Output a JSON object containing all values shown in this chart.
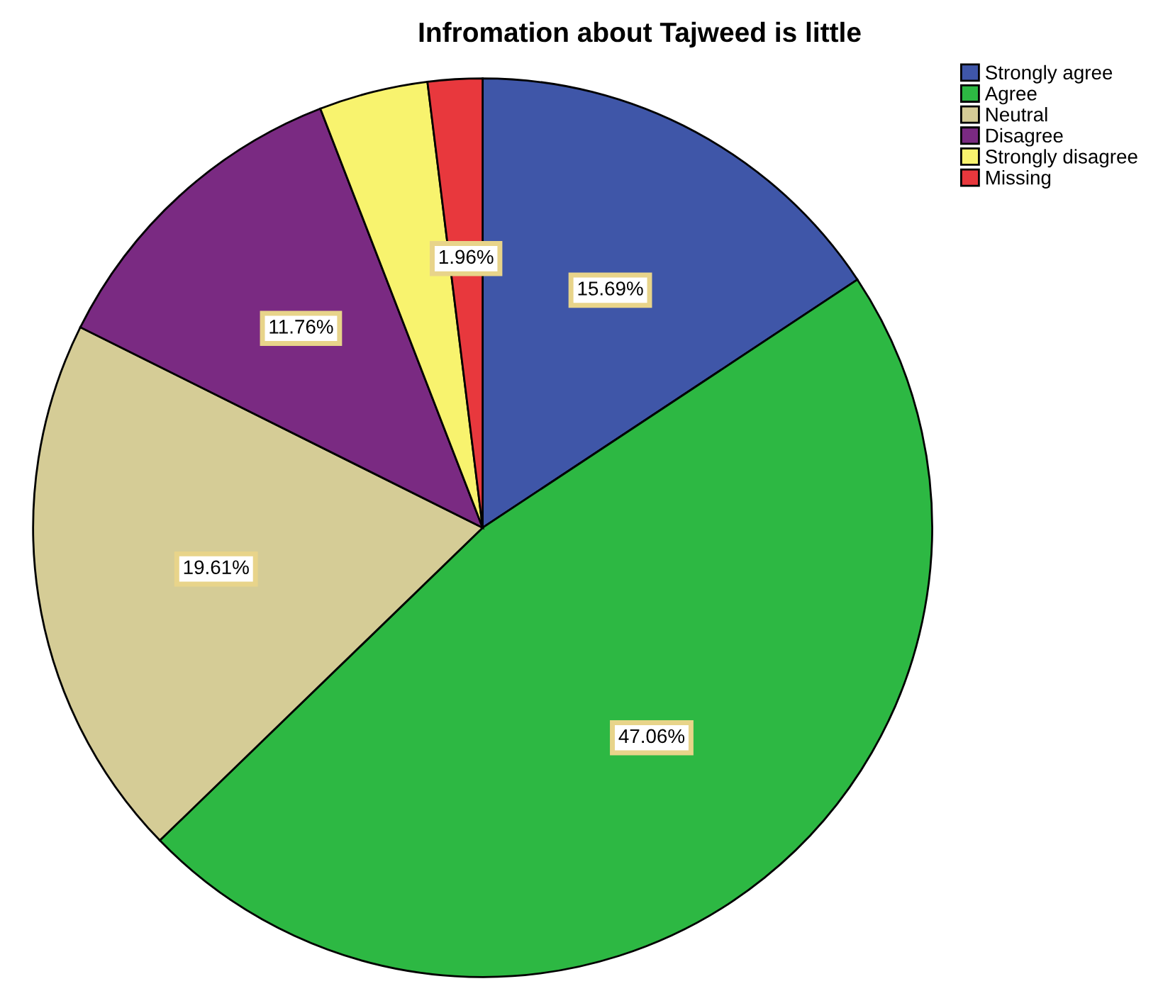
{
  "chart_data": {
    "type": "pie",
    "title": "Infromation about Tajweed is little",
    "categories": [
      "Strongly agree",
      "Agree",
      "Neutral",
      "Disagree",
      "Strongly disagree",
      "Missing"
    ],
    "values": [
      15.69,
      47.06,
      19.61,
      11.76,
      3.92,
      1.96
    ],
    "colors": [
      "#3f56a8",
      "#2db843",
      "#d5cc96",
      "#7a2a82",
      "#f8f36e",
      "#e8383d"
    ],
    "value_labels": [
      "15.69%",
      "47.06%",
      "19.61%",
      "11.76%",
      null,
      "1.96%"
    ],
    "legend": "top right"
  }
}
